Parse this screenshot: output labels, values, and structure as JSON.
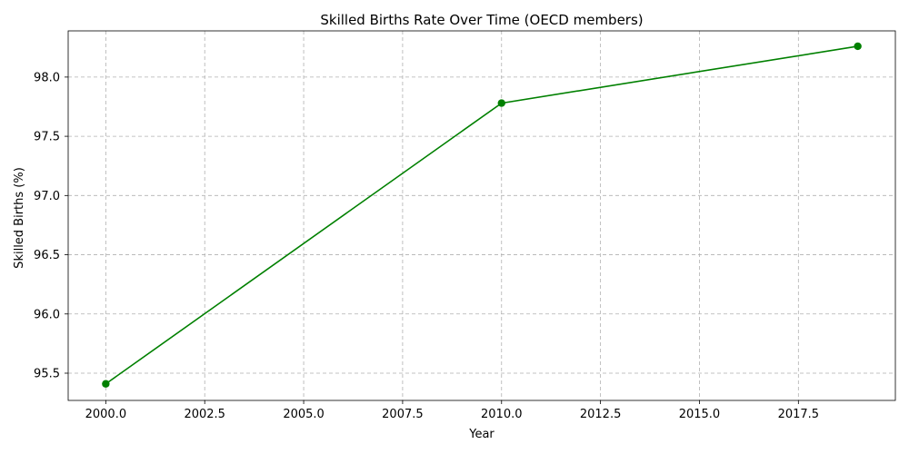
{
  "chart_data": {
    "type": "line",
    "title": "Skilled Births Rate Over Time (OECD members)",
    "xlabel": "Year",
    "ylabel": "Skilled Births (%)",
    "xlim": [
      1999.05,
      2019.95
    ],
    "ylim": [
      95.27,
      98.39
    ],
    "xticks": [
      2000.0,
      2002.5,
      2005.0,
      2007.5,
      2010.0,
      2012.5,
      2015.0,
      2017.5
    ],
    "xtick_labels": [
      "2000.0",
      "2002.5",
      "2005.0",
      "2007.5",
      "2010.0",
      "2012.5",
      "2015.0",
      "2017.5"
    ],
    "yticks": [
      95.5,
      96.0,
      96.5,
      97.0,
      97.5,
      98.0
    ],
    "ytick_labels": [
      "95.5",
      "96.0",
      "96.5",
      "97.0",
      "97.5",
      "98.0"
    ],
    "grid": true,
    "color": "#008000",
    "series": [
      {
        "x": [
          2000,
          2010,
          2019
        ],
        "y": [
          95.41,
          97.78,
          98.26
        ]
      }
    ]
  }
}
